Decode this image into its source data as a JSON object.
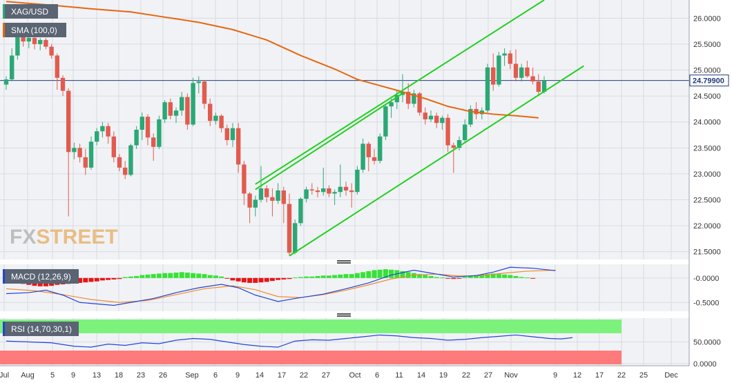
{
  "colors": {
    "up": "#2aa876",
    "down": "#e15b4f",
    "sma": "#e8650d",
    "channel": "#20d020",
    "hline": "#1f3a7a",
    "macd_line": "#2243d8",
    "signal_line": "#ef8a2c",
    "hist_pos": "#37e237",
    "hist_neg": "#e31717",
    "rsi_line": "#2243d8",
    "rsi_overbought": "#7cf27c",
    "rsi_oversold": "#ff7a7a",
    "panel_bg": "#f1f2f5",
    "label_bg": "#5a6473",
    "fxstreet": "#e8b878"
  },
  "labels": {
    "symbol": "XAG/USD",
    "sma": "SMA (100,0)",
    "macd": "MACD (12,26,9)",
    "rsi": "RSI (14,70,30,1)",
    "price_tag": "24.79900",
    "watermark_fx": "FX",
    "watermark_street": "STREET"
  },
  "chart_data": [
    {
      "type": "candlestick",
      "title": "XAG/USD",
      "ylim": [
        21.35,
        26.35
      ],
      "y_ticks": [
        "21.5000",
        "22.0000",
        "22.5000",
        "23.0000",
        "23.5000",
        "24.0000",
        "24.5000",
        "25.0000",
        "25.5000",
        "26.0000"
      ],
      "x_ticks": [
        "Jul",
        "Aug",
        "5",
        "9",
        "13",
        "18",
        "23",
        "26",
        "Sep",
        "6",
        "9",
        "14",
        "17",
        "22",
        "27",
        "Oct",
        "6",
        "11",
        "14",
        "19",
        "22",
        "27",
        "Nov",
        "9",
        "12",
        "17",
        "22",
        "25",
        "Dec"
      ],
      "current_price": 24.799,
      "ohlc": [
        [
          24.72,
          24.88,
          24.62,
          24.82
        ],
        [
          24.82,
          25.42,
          24.78,
          25.28
        ],
        [
          25.28,
          25.8,
          25.2,
          25.7
        ],
        [
          25.7,
          25.78,
          25.45,
          25.55
        ],
        [
          25.55,
          25.72,
          25.42,
          25.62
        ],
        [
          25.62,
          25.7,
          25.4,
          25.5
        ],
        [
          25.5,
          25.62,
          25.38,
          25.58
        ],
        [
          25.58,
          25.62,
          25.4,
          25.45
        ],
        [
          25.45,
          25.5,
          25.22,
          25.28
        ],
        [
          25.28,
          25.32,
          24.62,
          24.85
        ],
        [
          24.85,
          24.9,
          24.5,
          24.6
        ],
        [
          24.6,
          24.65,
          22.18,
          23.42
        ],
        [
          23.42,
          23.6,
          23.28,
          23.5
        ],
        [
          23.5,
          23.58,
          23.22,
          23.32
        ],
        [
          23.32,
          23.48,
          22.98,
          23.12
        ],
        [
          23.12,
          23.72,
          23.08,
          23.62
        ],
        [
          23.62,
          23.88,
          23.55,
          23.82
        ],
        [
          23.82,
          24.0,
          23.7,
          23.92
        ],
        [
          23.92,
          23.98,
          23.58,
          23.72
        ],
        [
          23.72,
          23.82,
          23.22,
          23.32
        ],
        [
          23.32,
          23.38,
          23.05,
          23.12
        ],
        [
          23.12,
          23.25,
          22.9,
          22.98
        ],
        [
          22.98,
          23.58,
          22.95,
          23.55
        ],
        [
          23.55,
          23.92,
          23.48,
          23.85
        ],
        [
          23.85,
          24.18,
          23.65,
          24.1
        ],
        [
          24.1,
          24.15,
          23.55,
          23.7
        ],
        [
          23.7,
          23.78,
          23.25,
          23.52
        ],
        [
          23.52,
          24.12,
          23.48,
          24.05
        ],
        [
          24.05,
          24.42,
          23.98,
          24.38
        ],
        [
          24.38,
          24.45,
          24.05,
          24.12
        ],
        [
          24.12,
          24.28,
          23.98,
          24.22
        ],
        [
          24.22,
          24.58,
          24.12,
          24.48
        ],
        [
          24.48,
          24.55,
          23.85,
          23.95
        ],
        [
          23.95,
          24.85,
          23.92,
          24.75
        ],
        [
          24.75,
          24.88,
          24.55,
          24.78
        ],
        [
          24.78,
          24.8,
          24.25,
          24.35
        ],
        [
          24.35,
          24.45,
          23.92,
          24.02
        ],
        [
          24.02,
          24.18,
          23.95,
          24.12
        ],
        [
          24.12,
          24.15,
          23.8,
          23.88
        ],
        [
          23.88,
          23.95,
          23.55,
          23.65
        ],
        [
          23.65,
          23.98,
          23.52,
          23.88
        ],
        [
          23.88,
          23.98,
          23.02,
          23.18
        ],
        [
          23.18,
          23.25,
          22.4,
          22.62
        ],
        [
          22.62,
          22.65,
          22.05,
          22.35
        ],
        [
          22.35,
          22.58,
          22.18,
          22.5
        ],
        [
          22.5,
          23.15,
          22.45,
          22.72
        ],
        [
          22.72,
          22.78,
          22.45,
          22.55
        ],
        [
          22.55,
          22.72,
          22.18,
          22.48
        ],
        [
          22.48,
          22.82,
          22.42,
          22.68
        ],
        [
          22.68,
          22.75,
          22.05,
          22.42
        ],
        [
          22.42,
          22.62,
          21.42,
          21.48
        ],
        [
          21.48,
          22.12,
          21.45,
          22.05
        ],
        [
          22.05,
          22.55,
          22.0,
          22.52
        ],
        [
          22.52,
          22.75,
          22.45,
          22.7
        ],
        [
          22.7,
          22.82,
          22.6,
          22.68
        ],
        [
          22.68,
          22.75,
          22.55,
          22.65
        ],
        [
          22.65,
          23.12,
          22.58,
          22.72
        ],
        [
          22.72,
          22.78,
          22.55,
          22.62
        ],
        [
          22.62,
          22.7,
          22.4,
          22.65
        ],
        [
          22.65,
          23.18,
          22.55,
          22.75
        ],
        [
          22.75,
          22.85,
          22.58,
          22.68
        ],
        [
          22.68,
          22.82,
          22.35,
          22.65
        ],
        [
          22.65,
          23.15,
          22.6,
          23.08
        ],
        [
          23.08,
          23.68,
          23.02,
          23.58
        ],
        [
          23.58,
          23.62,
          23.05,
          23.32
        ],
        [
          23.32,
          23.48,
          23.18,
          23.25
        ],
        [
          23.25,
          23.78,
          23.2,
          23.72
        ],
        [
          23.72,
          24.35,
          23.65,
          24.3
        ],
        [
          24.3,
          24.45,
          24.08,
          24.38
        ],
        [
          24.38,
          24.62,
          24.25,
          24.52
        ],
        [
          24.52,
          24.92,
          24.38,
          24.58
        ],
        [
          24.58,
          24.75,
          24.25,
          24.35
        ],
        [
          24.35,
          24.62,
          24.28,
          24.55
        ],
        [
          24.55,
          24.58,
          24.12,
          24.18
        ],
        [
          24.18,
          24.28,
          23.95,
          24.05
        ],
        [
          24.05,
          24.22,
          24.0,
          24.12
        ],
        [
          24.12,
          24.18,
          23.88,
          23.98
        ],
        [
          23.98,
          24.12,
          23.85,
          24.08
        ],
        [
          24.08,
          24.15,
          23.42,
          23.55
        ],
        [
          23.55,
          23.6,
          23.02,
          23.5
        ],
        [
          23.5,
          23.72,
          23.45,
          23.65
        ],
        [
          23.65,
          24.05,
          23.6,
          23.95
        ],
        [
          23.95,
          24.32,
          23.9,
          24.25
        ],
        [
          24.25,
          24.38,
          24.05,
          24.15
        ],
        [
          24.15,
          24.28,
          24.05,
          24.22
        ],
        [
          24.22,
          25.12,
          24.18,
          25.05
        ],
        [
          25.05,
          25.32,
          24.6,
          24.72
        ],
        [
          24.72,
          25.35,
          24.68,
          25.28
        ],
        [
          25.28,
          25.42,
          25.08,
          25.32
        ],
        [
          25.32,
          25.38,
          25.02,
          25.12
        ],
        [
          25.12,
          25.4,
          24.78,
          24.85
        ],
        [
          24.85,
          25.12,
          24.78,
          25.05
        ],
        [
          25.05,
          25.18,
          24.85,
          24.88
        ],
        [
          24.88,
          25.05,
          24.72,
          24.78
        ],
        [
          24.78,
          24.92,
          24.52,
          24.58
        ],
        [
          24.58,
          24.88,
          24.55,
          24.8
        ]
      ],
      "sma_100": [
        [
          0,
          26.32
        ],
        [
          8,
          26.25
        ],
        [
          15,
          26.18
        ],
        [
          22,
          26.12
        ],
        [
          28,
          26.02
        ],
        [
          34,
          25.92
        ],
        [
          40,
          25.78
        ],
        [
          46,
          25.58
        ],
        [
          52,
          25.28
        ],
        [
          58,
          25.02
        ],
        [
          62,
          24.82
        ],
        [
          66,
          24.7
        ],
        [
          70,
          24.58
        ],
        [
          74,
          24.45
        ],
        [
          78,
          24.3
        ],
        [
          82,
          24.2
        ],
        [
          86,
          24.15
        ],
        [
          90,
          24.12
        ],
        [
          94,
          24.08
        ]
      ],
      "channel_lines": [
        [
          [
            44,
            22.8
          ],
          [
            95,
            26.35
          ]
        ],
        [
          [
            50,
            21.42
          ],
          [
            102,
            25.08
          ]
        ],
        [
          [
            44,
            22.7
          ],
          [
            70,
            24.55
          ]
        ]
      ]
    },
    {
      "type": "macd",
      "title": "MACD (12,26,9)",
      "ylim": [
        -0.68,
        0.28
      ],
      "y_ticks": [
        "-0.0000",
        "-0.5000"
      ],
      "macd": [
        [
          0,
          -0.32
        ],
        [
          4,
          -0.3
        ],
        [
          7,
          -0.25
        ],
        [
          10,
          -0.35
        ],
        [
          13,
          -0.5
        ],
        [
          16,
          -0.53
        ],
        [
          19,
          -0.56
        ],
        [
          22,
          -0.5
        ],
        [
          26,
          -0.42
        ],
        [
          30,
          -0.3
        ],
        [
          34,
          -0.2
        ],
        [
          38,
          -0.13
        ],
        [
          41,
          -0.2
        ],
        [
          44,
          -0.35
        ],
        [
          48,
          -0.48
        ],
        [
          51,
          -0.42
        ],
        [
          56,
          -0.33
        ],
        [
          60,
          -0.22
        ],
        [
          64,
          -0.1
        ],
        [
          68,
          0.06
        ],
        [
          72,
          0.16
        ],
        [
          75,
          0.1
        ],
        [
          79,
          0.02
        ],
        [
          83,
          0.05
        ],
        [
          86,
          0.12
        ],
        [
          89,
          0.22
        ],
        [
          93,
          0.2
        ],
        [
          97,
          0.15
        ]
      ],
      "signal": [
        [
          0,
          -0.22
        ],
        [
          5,
          -0.26
        ],
        [
          10,
          -0.34
        ],
        [
          15,
          -0.44
        ],
        [
          20,
          -0.5
        ],
        [
          25,
          -0.46
        ],
        [
          30,
          -0.34
        ],
        [
          35,
          -0.22
        ],
        [
          40,
          -0.16
        ],
        [
          44,
          -0.24
        ],
        [
          48,
          -0.38
        ],
        [
          52,
          -0.4
        ],
        [
          56,
          -0.34
        ],
        [
          60,
          -0.25
        ],
        [
          64,
          -0.14
        ],
        [
          68,
          -0.02
        ],
        [
          72,
          0.06
        ],
        [
          76,
          0.08
        ],
        [
          80,
          0.04
        ],
        [
          84,
          0.05
        ],
        [
          88,
          0.1
        ],
        [
          92,
          0.14
        ],
        [
          97,
          0.16
        ]
      ],
      "histogram": [
        -0.04,
        -0.06,
        -0.1,
        -0.12,
        -0.14,
        -0.16,
        -0.17,
        -0.17,
        -0.16,
        -0.14,
        -0.13,
        -0.12,
        -0.11,
        -0.1,
        -0.09,
        -0.08,
        -0.07,
        -0.05,
        -0.04,
        -0.03,
        -0.02,
        0.02,
        0.03,
        0.04,
        0.06,
        0.07,
        0.08,
        0.09,
        0.1,
        0.1,
        0.11,
        0.12,
        0.11,
        0.1,
        0.09,
        0.08,
        0.06,
        0.05,
        0.03,
        -0.01,
        -0.05,
        -0.07,
        -0.09,
        -0.1,
        -0.1,
        -0.09,
        -0.08,
        -0.06,
        -0.04,
        -0.03,
        -0.02,
        0.01,
        0.02,
        0.03,
        0.03,
        0.04,
        0.05,
        0.05,
        0.06,
        0.07,
        0.08,
        0.08,
        0.1,
        0.12,
        0.14,
        0.16,
        0.17,
        0.18,
        0.17,
        0.16,
        0.14,
        0.12,
        0.1,
        0.08,
        0.06,
        0.04,
        0.02,
        0.01,
        -0.01,
        -0.02,
        -0.01,
        0.02,
        0.04,
        0.06,
        0.07,
        0.08,
        0.09,
        0.08,
        0.07,
        0.06,
        0.04,
        0.02,
        0.01,
        -0.01
      ]
    },
    {
      "type": "rsi",
      "title": "RSI (14,70,30,1)",
      "ylim": [
        -5,
        105
      ],
      "y_ticks": [
        "50.0000",
        "0.0000"
      ],
      "overbought": 70,
      "oversold": 30,
      "values": [
        [
          0,
          52
        ],
        [
          4,
          50
        ],
        [
          8,
          48
        ],
        [
          12,
          40
        ],
        [
          15,
          38
        ],
        [
          18,
          45
        ],
        [
          21,
          42
        ],
        [
          24,
          48
        ],
        [
          27,
          46
        ],
        [
          30,
          54
        ],
        [
          33,
          58
        ],
        [
          36,
          56
        ],
        [
          39,
          50
        ],
        [
          42,
          44
        ],
        [
          45,
          40
        ],
        [
          48,
          38
        ],
        [
          51,
          52
        ],
        [
          54,
          55
        ],
        [
          57,
          54
        ],
        [
          60,
          58
        ],
        [
          63,
          62
        ],
        [
          66,
          66
        ],
        [
          69,
          64
        ],
        [
          72,
          60
        ],
        [
          75,
          58
        ],
        [
          78,
          54
        ],
        [
          81,
          56
        ],
        [
          84,
          60
        ],
        [
          87,
          63
        ],
        [
          90,
          66
        ],
        [
          93,
          62
        ],
        [
          96,
          58
        ],
        [
          98,
          57
        ],
        [
          100,
          60
        ]
      ]
    }
  ]
}
